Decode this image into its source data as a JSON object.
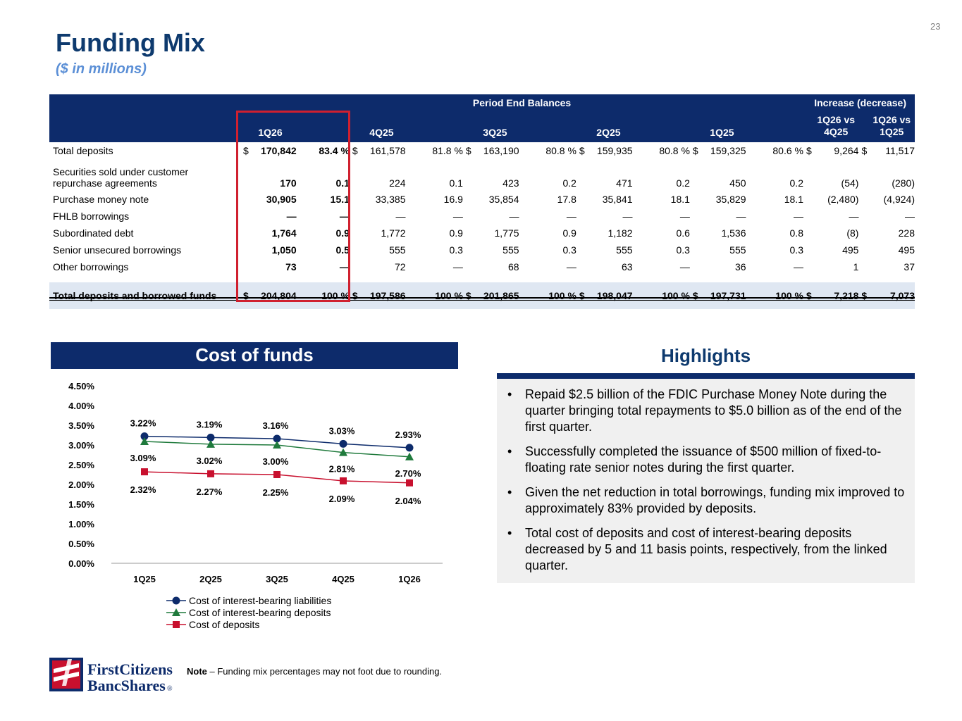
{
  "page_number": "23",
  "title": "Funding Mix",
  "subtitle": "($ in millions)",
  "table": {
    "group_headers": {
      "period": "Period End Balances",
      "change": "Increase (decrease)"
    },
    "columns": {
      "c1q26": "1Q26",
      "c4q25": "4Q25",
      "c3q25": "3Q25",
      "c2q25": "2Q25",
      "c1q25": "1Q25",
      "vs4q_l1": "1Q26 vs",
      "vs4q_l2": "4Q25",
      "vs1q_l1": "1Q26 vs",
      "vs1q_l2": "1Q25"
    },
    "rows": [
      {
        "label": "Total deposits",
        "cells": [
          "$",
          "170,842",
          "83.4 %",
          "$",
          "161,578",
          "81.8 %",
          "$",
          "163,190",
          "80.8 %",
          "$",
          "159,935",
          "80.8 %",
          "$",
          "159,325",
          "80.6 %",
          "$",
          "9,264",
          "$",
          "11,517"
        ]
      },
      {
        "label_l1": "Securities sold under customer",
        "label_l2": "repurchase agreements",
        "cells": [
          "",
          "170",
          "0.1",
          "",
          "224",
          "0.1",
          "",
          "423",
          "0.2",
          "",
          "471",
          "0.2",
          "",
          "450",
          "0.2",
          "",
          "(54)",
          "",
          "(280)"
        ]
      },
      {
        "label": "Purchase money note",
        "cells": [
          "",
          "30,905",
          "15.1",
          "",
          "33,385",
          "16.9",
          "",
          "35,854",
          "17.8",
          "",
          "35,841",
          "18.1",
          "",
          "35,829",
          "18.1",
          "",
          "(2,480)",
          "",
          "(4,924)"
        ]
      },
      {
        "label": "FHLB borrowings",
        "cells": [
          "",
          "—",
          "—",
          "",
          "—",
          "—",
          "",
          "—",
          "—",
          "",
          "—",
          "—",
          "",
          "—",
          "—",
          "",
          "—",
          "",
          "—"
        ]
      },
      {
        "label": "Subordinated debt",
        "cells": [
          "",
          "1,764",
          "0.9",
          "",
          "1,772",
          "0.9",
          "",
          "1,775",
          "0.9",
          "",
          "1,182",
          "0.6",
          "",
          "1,536",
          "0.8",
          "",
          "(8)",
          "",
          "228"
        ]
      },
      {
        "label": "Senior unsecured borrowings",
        "cells": [
          "",
          "1,050",
          "0.5",
          "",
          "555",
          "0.3",
          "",
          "555",
          "0.3",
          "",
          "555",
          "0.3",
          "",
          "555",
          "0.3",
          "",
          "495",
          "",
          "495"
        ]
      },
      {
        "label": "Other borrowings",
        "cells": [
          "",
          "73",
          "—",
          "",
          "72",
          "—",
          "",
          "68",
          "—",
          "",
          "63",
          "—",
          "",
          "36",
          "—",
          "",
          "1",
          "",
          "37"
        ]
      },
      {
        "label": "Total deposits and borrowed funds",
        "cells": [
          "$",
          "204,804",
          "100 %",
          "$",
          "197,586",
          "100 %",
          "$",
          "201,865",
          "100 %",
          "$",
          "198,047",
          "100 %",
          "$",
          "197,731",
          "100 %",
          "$",
          "7,218",
          "$",
          "7,073"
        ]
      }
    ]
  },
  "chart_title": "Cost of funds",
  "chart_data": {
    "type": "line",
    "categories": [
      "1Q25",
      "2Q25",
      "3Q25",
      "4Q25",
      "1Q26"
    ],
    "series": [
      {
        "name": "Cost of interest-bearing liabilities",
        "values": [
          3.22,
          3.19,
          3.16,
          3.03,
          2.93
        ],
        "labels": [
          "3.22%",
          "3.19%",
          "3.16%",
          "3.03%",
          "2.93%"
        ],
        "color": "#0d2b6b",
        "marker": "circle"
      },
      {
        "name": "Cost of interest-bearing deposits",
        "values": [
          3.09,
          3.02,
          3.0,
          2.81,
          2.7
        ],
        "labels": [
          "3.09%",
          "3.02%",
          "3.00%",
          "2.81%",
          "2.70%"
        ],
        "color": "#1f7a3c",
        "marker": "triangle"
      },
      {
        "name": "Cost of deposits",
        "values": [
          2.32,
          2.27,
          2.25,
          2.09,
          2.04
        ],
        "labels": [
          "2.32%",
          "2.27%",
          "2.25%",
          "2.09%",
          "2.04%"
        ],
        "color": "#c8102e",
        "marker": "square"
      }
    ],
    "yticks": [
      "0.00%",
      "0.50%",
      "1.00%",
      "1.50%",
      "2.00%",
      "2.50%",
      "3.00%",
      "3.50%",
      "4.00%",
      "4.50%"
    ],
    "ylim": [
      0,
      4.5
    ],
    "legend_position": "bottom",
    "grid": false
  },
  "highlights": {
    "title": "Highlights",
    "bullet": "•",
    "items": [
      "Repaid $2.5 billion of the FDIC Purchase Money Note during the quarter bringing total repayments to $5.0 billion as of the end of the first quarter.",
      "Successfully completed the issuance of $500 million of fixed-to-floating rate senior notes during the first quarter.",
      "Given the net reduction in total borrowings, funding mix improved to approximately 83% provided by deposits.",
      "Total cost of deposits and cost of interest-bearing deposits decreased by 5 and 11 basis points, respectively, from the linked quarter."
    ]
  },
  "footer": {
    "note_bold": "Note",
    "note_text": " – Funding mix percentages may not foot due to rounding.",
    "logo_line1": "FirstCitizens",
    "logo_line2": "BancShares",
    "logo_mark": "®"
  },
  "colors": {
    "navy": "#0d2b6b",
    "title_blue": "#0e3a6e",
    "subtitle_blue": "#5b8fd6",
    "highlight_red": "#d0202f"
  }
}
